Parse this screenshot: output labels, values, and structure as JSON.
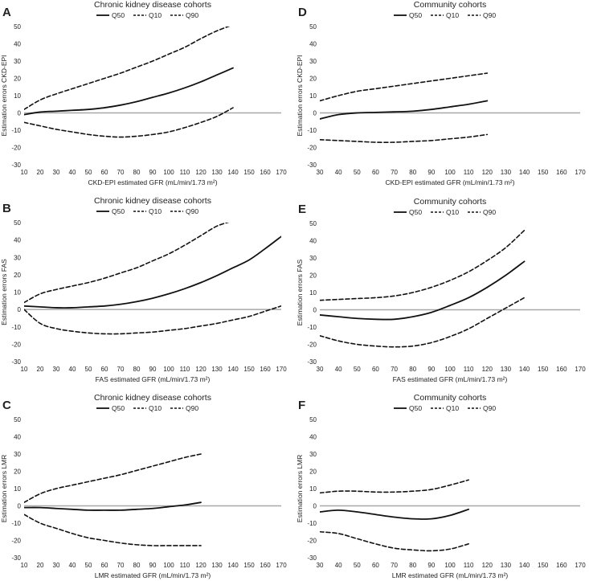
{
  "legend_labels": [
    "Q50",
    "Q10",
    "Q90"
  ],
  "chart_data": [
    {
      "type": "line",
      "panel_letter": "A",
      "title": "Chronic kidney disease cohorts",
      "xlabel": "CKD-EPI estimated GFR (mL/min/1.73 m²)",
      "ylabel": "Estimation errors CKD-EPI",
      "xlim": [
        10,
        170
      ],
      "ylim": [
        -30,
        50
      ],
      "xstep": 10,
      "ystep": 10,
      "series": [
        {
          "name": "Q50",
          "x": [
            10,
            20,
            30,
            40,
            50,
            60,
            70,
            80,
            90,
            100,
            110,
            120,
            130,
            140
          ],
          "values": [
            -1,
            0.5,
            1,
            1.5,
            2,
            3,
            4.5,
            6.5,
            9,
            11.5,
            14.5,
            18,
            22,
            26
          ]
        },
        {
          "name": "Q10",
          "x": [
            10,
            20,
            30,
            40,
            50,
            60,
            70,
            80,
            90,
            100,
            110,
            120,
            130,
            140
          ],
          "values": [
            -5.5,
            -7.5,
            -9.5,
            -11,
            -12.5,
            -13.5,
            -14,
            -13.5,
            -12.5,
            -11,
            -8.5,
            -5.5,
            -2,
            3
          ]
        },
        {
          "name": "Q90",
          "x": [
            10,
            20,
            30,
            40,
            50,
            60,
            70,
            80,
            90,
            100,
            110,
            120,
            130,
            140
          ],
          "values": [
            2,
            7.5,
            11,
            14,
            17,
            20,
            23,
            26.5,
            30,
            34,
            38,
            43,
            47.5,
            51
          ]
        }
      ]
    },
    {
      "type": "line",
      "panel_letter": "B",
      "title": "Chronic kidney disease cohorts",
      "xlabel": "FAS estimated GFR (mL/min/1.73 m²)",
      "ylabel": "Estimation errors FAS",
      "xlim": [
        10,
        170
      ],
      "ylim": [
        -30,
        50
      ],
      "xstep": 10,
      "ystep": 10,
      "series": [
        {
          "name": "Q50",
          "x": [
            10,
            20,
            30,
            40,
            50,
            60,
            70,
            80,
            90,
            100,
            110,
            120,
            130,
            140,
            150,
            160,
            170
          ],
          "values": [
            2,
            1.5,
            1,
            1,
            1.5,
            2,
            3,
            4.5,
            6.5,
            9,
            12,
            15.5,
            19.5,
            24,
            28.5,
            35,
            42
          ]
        },
        {
          "name": "Q10",
          "x": [
            10,
            20,
            30,
            40,
            50,
            60,
            70,
            80,
            90,
            100,
            110,
            120,
            130,
            140,
            150,
            160,
            170
          ],
          "values": [
            0,
            -8,
            -11,
            -12.5,
            -13.5,
            -14,
            -14,
            -13.5,
            -13,
            -12,
            -11,
            -9.5,
            -8,
            -6,
            -4,
            -1,
            2
          ]
        },
        {
          "name": "Q90",
          "x": [
            10,
            20,
            30,
            40,
            50,
            60,
            70,
            80,
            90,
            100,
            110,
            120,
            130,
            140
          ],
          "values": [
            4,
            9,
            11.5,
            13.5,
            15.5,
            18,
            21,
            24,
            28,
            32,
            37,
            42.5,
            48,
            51
          ]
        }
      ]
    },
    {
      "type": "line",
      "panel_letter": "C",
      "title": "Chronic kidney disease cohorts",
      "xlabel": "LMR estimated GFR (mL/min/1.73 m²)",
      "ylabel": "Estimation errors LMR",
      "xlim": [
        10,
        170
      ],
      "ylim": [
        -30,
        50
      ],
      "xstep": 10,
      "ystep": 10,
      "series": [
        {
          "name": "Q50",
          "x": [
            10,
            20,
            30,
            40,
            50,
            60,
            70,
            80,
            90,
            100,
            110,
            120
          ],
          "values": [
            -1,
            -1,
            -1.5,
            -2,
            -2.5,
            -2.5,
            -2.5,
            -2,
            -1.5,
            -0.5,
            0.5,
            2
          ]
        },
        {
          "name": "Q10",
          "x": [
            10,
            20,
            30,
            40,
            50,
            60,
            70,
            80,
            90,
            100,
            110,
            120
          ],
          "values": [
            -5,
            -10,
            -13,
            -16,
            -18.5,
            -20,
            -21.5,
            -22.5,
            -23,
            -23,
            -23,
            -23
          ]
        },
        {
          "name": "Q90",
          "x": [
            10,
            20,
            30,
            40,
            50,
            60,
            70,
            80,
            90,
            100,
            110,
            120
          ],
          "values": [
            2,
            7,
            10,
            12,
            14,
            16,
            18,
            20.5,
            23,
            25.5,
            28,
            30
          ]
        }
      ]
    },
    {
      "type": "line",
      "panel_letter": "D",
      "title": "Community cohorts",
      "xlabel": "CKD-EPI estimated GFR (mL/min/1.73 m²)",
      "ylabel": "Estimation errors CKD-EPI",
      "xlim": [
        30,
        170
      ],
      "ylim": [
        -30,
        50
      ],
      "xstep": 10,
      "ystep": 10,
      "series": [
        {
          "name": "Q50",
          "x": [
            30,
            40,
            50,
            60,
            70,
            80,
            90,
            100,
            110,
            120
          ],
          "values": [
            -3.5,
            -1,
            0,
            0.3,
            0.6,
            1,
            2,
            3.5,
            5,
            7
          ]
        },
        {
          "name": "Q10",
          "x": [
            30,
            40,
            50,
            60,
            70,
            80,
            90,
            100,
            110,
            120
          ],
          "values": [
            -15.5,
            -16,
            -16.5,
            -17,
            -17,
            -16.5,
            -16,
            -15,
            -14,
            -12.5
          ]
        },
        {
          "name": "Q90",
          "x": [
            30,
            40,
            50,
            60,
            70,
            80,
            90,
            100,
            110,
            120
          ],
          "values": [
            7,
            10,
            12.5,
            14,
            15.5,
            17,
            18.5,
            20,
            21.5,
            23
          ]
        }
      ]
    },
    {
      "type": "line",
      "panel_letter": "E",
      "title": "Community cohorts",
      "xlabel": "FAS estimated GFR (mL/min/1.73 m²)",
      "ylabel": "Estimation errors FAS",
      "xlim": [
        30,
        170
      ],
      "ylim": [
        -30,
        50
      ],
      "xstep": 10,
      "ystep": 10,
      "series": [
        {
          "name": "Q50",
          "x": [
            30,
            40,
            50,
            60,
            70,
            80,
            90,
            100,
            110,
            120,
            130,
            140
          ],
          "values": [
            -3,
            -4,
            -5,
            -5.5,
            -5.5,
            -4,
            -1.5,
            2.5,
            7,
            13,
            20,
            28
          ]
        },
        {
          "name": "Q10",
          "x": [
            30,
            40,
            50,
            60,
            70,
            80,
            90,
            100,
            110,
            120,
            130,
            140
          ],
          "values": [
            -15,
            -18,
            -20,
            -21,
            -21.5,
            -21,
            -19,
            -15.5,
            -11,
            -5,
            1,
            7
          ]
        },
        {
          "name": "Q90",
          "x": [
            30,
            40,
            50,
            60,
            70,
            80,
            90,
            100,
            110,
            120,
            130,
            140
          ],
          "values": [
            5.5,
            6,
            6.5,
            7,
            8,
            10,
            13,
            17,
            22,
            28.5,
            36,
            46
          ]
        }
      ]
    },
    {
      "type": "line",
      "panel_letter": "F",
      "title": "Community cohorts",
      "xlabel": "LMR estimated GFR (mL/min/1.73 m²)",
      "ylabel": "Estimation errors LMR",
      "xlim": [
        30,
        170
      ],
      "ylim": [
        -30,
        50
      ],
      "xstep": 10,
      "ystep": 10,
      "series": [
        {
          "name": "Q50",
          "x": [
            30,
            40,
            50,
            60,
            70,
            80,
            90,
            100,
            110
          ],
          "values": [
            -3.5,
            -2.5,
            -3.5,
            -5,
            -6.5,
            -7.5,
            -7.5,
            -5.5,
            -2
          ]
        },
        {
          "name": "Q10",
          "x": [
            30,
            40,
            50,
            60,
            70,
            80,
            90,
            100,
            110
          ],
          "values": [
            -15,
            -16,
            -19,
            -22,
            -24.5,
            -25.5,
            -26,
            -25,
            -22
          ]
        },
        {
          "name": "Q90",
          "x": [
            30,
            40,
            50,
            60,
            70,
            80,
            90,
            100,
            110
          ],
          "values": [
            7.5,
            8.5,
            8.5,
            8,
            8,
            8.5,
            9.5,
            12,
            15
          ]
        }
      ]
    }
  ]
}
